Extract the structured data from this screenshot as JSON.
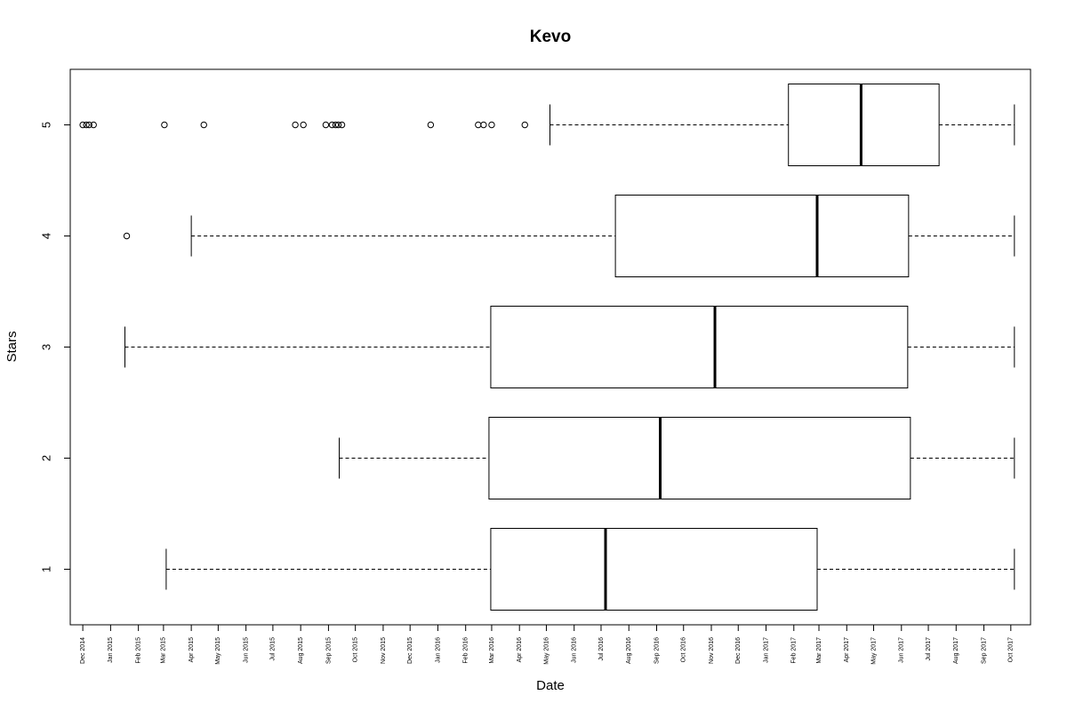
{
  "chart_data": {
    "type": "boxplot",
    "orientation": "horizontal",
    "title": "Kevo",
    "xlabel": "Date",
    "ylabel": "Stars",
    "categories": [
      "1",
      "2",
      "3",
      "4",
      "5"
    ],
    "x_tick_labels": [
      "Dec 2014",
      "Jan 2015",
      "Feb 2015",
      "Mar 2015",
      "Apr 2015",
      "May 2015",
      "Jun 2015",
      "Jul 2015",
      "Aug 2015",
      "Sep 2015",
      "Oct 2015",
      "Nov 2015",
      "Dec 2015",
      "Jan 2016",
      "Feb 2016",
      "Mar 2016",
      "Apr 2016",
      "May 2016",
      "Jun 2016",
      "Jul 2016",
      "Aug 2016",
      "Sep 2016",
      "Oct 2016",
      "Nov 2016",
      "Dec 2016",
      "Jan 2017",
      "Feb 2017",
      "Mar 2017",
      "Apr 2017",
      "May 2017",
      "Jun 2017",
      "Jul 2017",
      "Aug 2017",
      "Sep 2017",
      "Oct 2017"
    ],
    "xlim": [
      "2014-11-17",
      "2017-10-23"
    ],
    "ylim": [
      0.5,
      5.5
    ],
    "boxes": [
      {
        "stars": "1",
        "whisker_low": "2015-03-04",
        "q1": "2016-02-29",
        "median": "2016-07-06",
        "q3": "2017-02-27",
        "whisker_high": "2017-10-05",
        "outliers": []
      },
      {
        "stars": "2",
        "whisker_low": "2015-09-13",
        "q1": "2016-02-27",
        "median": "2016-09-05",
        "q3": "2017-06-11",
        "whisker_high": "2017-10-05",
        "outliers": []
      },
      {
        "stars": "3",
        "whisker_low": "2015-01-17",
        "q1": "2016-02-29",
        "median": "2016-11-05",
        "q3": "2017-06-08",
        "whisker_high": "2017-10-05",
        "outliers": []
      },
      {
        "stars": "4",
        "whisker_low": "2015-04-01",
        "q1": "2016-07-17",
        "median": "2017-02-27",
        "q3": "2017-06-09",
        "whisker_high": "2017-10-05",
        "outliers": [
          "2015-01-19"
        ]
      },
      {
        "stars": "5",
        "whisker_low": "2016-05-05",
        "q1": "2017-01-26",
        "median": "2017-04-17",
        "q3": "2017-07-13",
        "whisker_high": "2017-10-05",
        "outliers": [
          "2014-12-01",
          "2014-12-05",
          "2014-12-08",
          "2014-12-13",
          "2015-03-02",
          "2015-04-15",
          "2015-07-26",
          "2015-08-04",
          "2015-08-29",
          "2015-09-05",
          "2015-09-09",
          "2015-09-12",
          "2015-09-16",
          "2015-12-24",
          "2016-02-15",
          "2016-02-21",
          "2016-03-01",
          "2016-04-07"
        ]
      }
    ],
    "grid": false,
    "legend": false
  }
}
